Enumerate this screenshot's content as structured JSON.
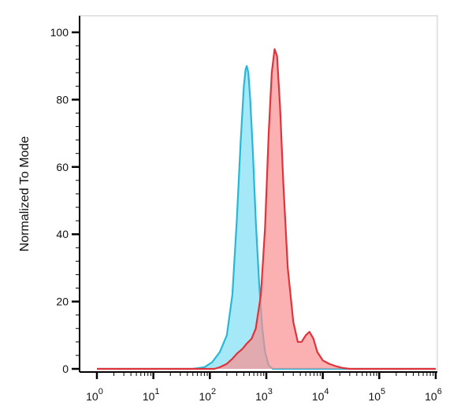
{
  "chart_data": {
    "type": "area",
    "xscale": "log",
    "xlim": [
      1,
      1000000
    ],
    "ylim": [
      0,
      100
    ],
    "grid": false,
    "legend": "none",
    "ylabel": "Normalized To Mode",
    "xlabel": "",
    "y_ticks": [
      "0",
      "20",
      "40",
      "60",
      "80",
      "100"
    ],
    "x_ticks": [
      {
        "base": "10",
        "exp": "0"
      },
      {
        "base": "10",
        "exp": "1"
      },
      {
        "base": "10",
        "exp": "2"
      },
      {
        "base": "10",
        "exp": "3"
      },
      {
        "base": "10",
        "exp": "4"
      },
      {
        "base": "10",
        "exp": "5"
      },
      {
        "base": "10",
        "exp": "6"
      }
    ],
    "series": [
      {
        "color_fill": "#7fe0f5",
        "color_line": "#29b7d8",
        "points": [
          [
            1,
            0
          ],
          [
            50,
            0
          ],
          [
            80,
            0.5
          ],
          [
            110,
            2
          ],
          [
            150,
            5
          ],
          [
            200,
            10
          ],
          [
            250,
            22
          ],
          [
            300,
            44
          ],
          [
            350,
            67
          ],
          [
            400,
            84
          ],
          [
            430,
            89
          ],
          [
            450,
            90
          ],
          [
            480,
            88
          ],
          [
            520,
            80
          ],
          [
            580,
            64
          ],
          [
            650,
            44
          ],
          [
            750,
            25
          ],
          [
            850,
            12
          ],
          [
            950,
            5
          ],
          [
            1100,
            1
          ],
          [
            1300,
            0
          ],
          [
            1000000,
            0
          ]
        ]
      },
      {
        "color_fill": "#f98f90",
        "color_line": "#e0333a",
        "points": [
          [
            1,
            0
          ],
          [
            120,
            0
          ],
          [
            150,
            0.5
          ],
          [
            200,
            1.5
          ],
          [
            250,
            3
          ],
          [
            300,
            4.5
          ],
          [
            380,
            6
          ],
          [
            450,
            7.5
          ],
          [
            550,
            9
          ],
          [
            650,
            12
          ],
          [
            800,
            22
          ],
          [
            950,
            42
          ],
          [
            1100,
            70
          ],
          [
            1250,
            88
          ],
          [
            1400,
            95
          ],
          [
            1550,
            93
          ],
          [
            1750,
            78
          ],
          [
            2000,
            55
          ],
          [
            2400,
            30
          ],
          [
            3000,
            14
          ],
          [
            3600,
            8
          ],
          [
            4200,
            8
          ],
          [
            5000,
            10
          ],
          [
            5800,
            11
          ],
          [
            6800,
            9
          ],
          [
            8000,
            5
          ],
          [
            10000,
            2.5
          ],
          [
            13000,
            1.5
          ],
          [
            17000,
            0.8
          ],
          [
            22000,
            0.3
          ],
          [
            30000,
            0
          ],
          [
            1000000,
            0
          ]
        ]
      }
    ]
  }
}
